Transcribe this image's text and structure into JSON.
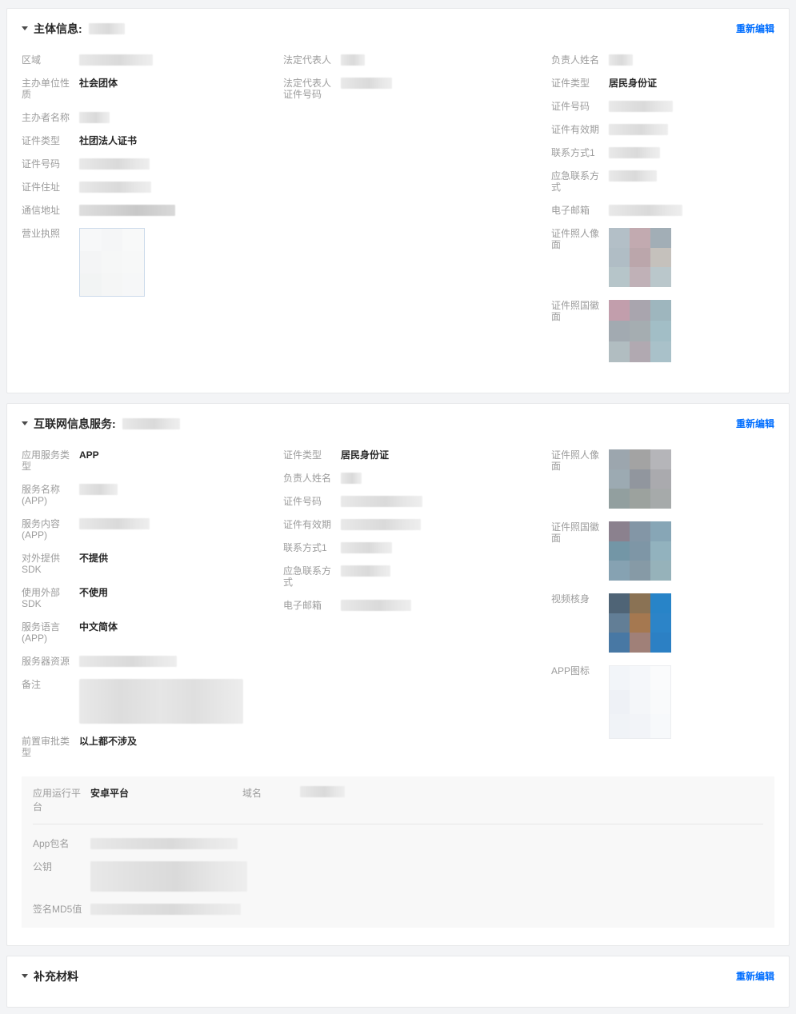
{
  "edit_link": "重新编辑",
  "colors": {
    "link_blue": "#006eff",
    "value_dark": "#262626",
    "label_gray": "#9c9c9c"
  },
  "s1": {
    "title": "主体信息:",
    "col1": [
      {
        "label": "区域"
      },
      {
        "label": "主办单位性质",
        "value": "社会团体"
      },
      {
        "label": "主办者名称"
      },
      {
        "label": "证件类型",
        "value": "社团法人证书"
      },
      {
        "label": "证件号码"
      },
      {
        "label": "证件住址"
      },
      {
        "label": "通信地址"
      },
      {
        "label": "营业执照"
      }
    ],
    "col2": [
      {
        "label": "法定代表人"
      },
      {
        "label": "法定代表人证件号码"
      }
    ],
    "col3": [
      {
        "label": "负责人姓名"
      },
      {
        "label": "证件类型",
        "value": "居民身份证"
      },
      {
        "label": "证件号码"
      },
      {
        "label": "证件有效期"
      },
      {
        "label": "联系方式1"
      },
      {
        "label": "应急联系方式"
      },
      {
        "label": "电子邮箱"
      },
      {
        "label": "证件照人像面"
      },
      {
        "label": "证件照国徽面"
      }
    ]
  },
  "s2": {
    "title": "互联网信息服务:",
    "col1": [
      {
        "label": "应用服务类型",
        "value": "APP"
      },
      {
        "label": "服务名称(APP)"
      },
      {
        "label": "服务内容(APP)"
      },
      {
        "label": "对外提供SDK",
        "value": "不提供"
      },
      {
        "label": "使用外部SDK",
        "value": "不使用"
      },
      {
        "label": "服务语言(APP)",
        "value": "中文简体"
      },
      {
        "label": "服务器资源"
      },
      {
        "label": "备注"
      },
      {
        "label": "前置审批类型",
        "value": "以上都不涉及"
      }
    ],
    "col2": [
      {
        "label": "证件类型",
        "value": "居民身份证"
      },
      {
        "label": "负责人姓名"
      },
      {
        "label": "证件号码"
      },
      {
        "label": "证件有效期"
      },
      {
        "label": "联系方式1"
      },
      {
        "label": "应急联系方式"
      },
      {
        "label": "电子邮箱"
      }
    ],
    "col3": [
      {
        "label": "证件照人像面"
      },
      {
        "label": "证件照国徽面"
      },
      {
        "label": "视频核身"
      },
      {
        "label": "APP图标"
      }
    ],
    "platform": {
      "run_platform_label": "应用运行平台",
      "run_platform_value": "安卓平台",
      "domain_label": "域名",
      "rows": [
        {
          "label": "App包名"
        },
        {
          "label": "公钥"
        },
        {
          "label": "签名MD5值"
        }
      ]
    }
  },
  "s3": {
    "title": "补充材料"
  },
  "mosaics": {
    "license": [
      "#f7f8f9",
      "#f5f6f7",
      "#f8f9f9",
      "#f4f5f6",
      "#f6f7f7",
      "#f7f8f8",
      "#f2f4f4",
      "#f5f6f6",
      "#f6f7f8"
    ],
    "s1_front": [
      "#b3bfc7",
      "#c2aab0",
      "#a2aeb6",
      "#b0bdc5",
      "#bba6ab",
      "#c5c1bc",
      "#b6c5c9",
      "#c0b1b7",
      "#bac7cb"
    ],
    "s1_back": [
      "#c29eac",
      "#a9a5ae",
      "#9eb6be",
      "#a2aab1",
      "#a5adb1",
      "#a2bec6",
      "#b1bdc1",
      "#b1a9b1",
      "#a9c1c9"
    ],
    "s2_front": [
      "#9ca6ae",
      "#a3a3a3",
      "#b5b5b9",
      "#9caab2",
      "#91969e",
      "#aaaaae",
      "#929f9f",
      "#9ca29e",
      "#a6aaaa"
    ],
    "s2_back": [
      "#8b818e",
      "#8396a6",
      "#87a6b6",
      "#7396a6",
      "#7e96a6",
      "#92b2be",
      "#86a2b2",
      "#869aa6",
      "#96b2ba"
    ],
    "video": [
      "#4f6476",
      "#8a7254",
      "#2884c8",
      "#627e96",
      "#a57850",
      "#2c84c8",
      "#4878a4",
      "#a08078",
      "#2c80c4"
    ],
    "app_icon": [
      "#f2f5f9",
      "#f5f7fa",
      "#fafbfc",
      "#eef1f6",
      "#f4f6f9",
      "#f9fafb",
      "#f0f3f7",
      "#f2f4f8",
      "#f7f9fb"
    ]
  }
}
